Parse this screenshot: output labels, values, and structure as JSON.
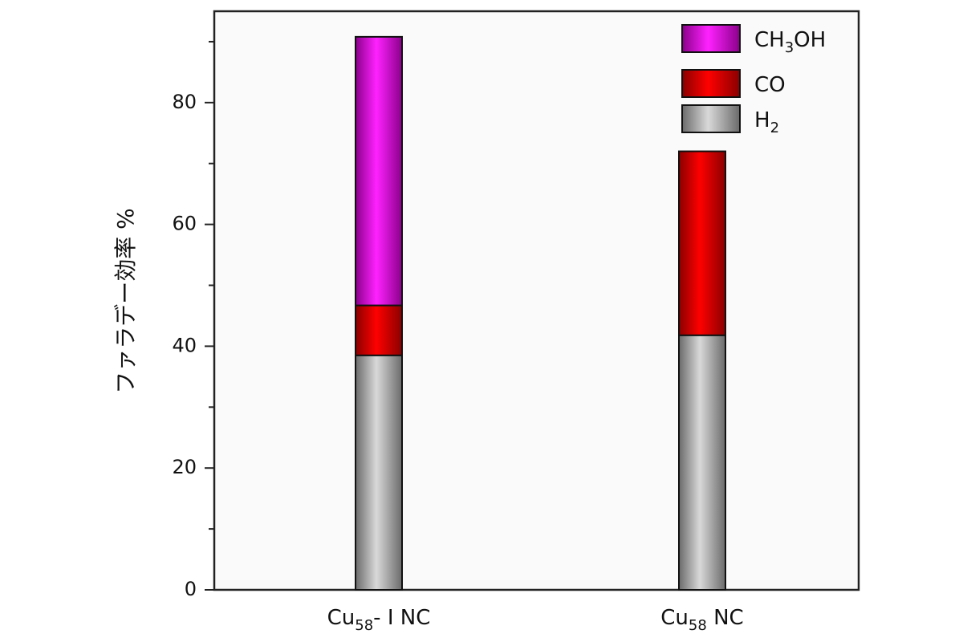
{
  "chart_data": {
    "type": "bar",
    "stacked": true,
    "categories": [
      "Cu58- Ⅰ NC",
      "Cu58 NC"
    ],
    "category_labels": [
      {
        "base": "Cu",
        "sub": "58",
        "rest": "- Ⅰ NC"
      },
      {
        "base": "Cu",
        "sub": "58",
        "rest": " NC"
      }
    ],
    "series": [
      {
        "name": "H2",
        "legend": {
          "base": "H",
          "sub": "2",
          "rest": ""
        },
        "values": [
          38.5,
          41.8
        ],
        "color": "#b3b3b3"
      },
      {
        "name": "CO",
        "legend": {
          "base": "CO",
          "sub": "",
          "rest": ""
        },
        "values": [
          8.2,
          30.2
        ],
        "color": "#ff0000"
      },
      {
        "name": "CH3OH",
        "legend": {
          "base": "CH",
          "sub": "3",
          "rest": "OH"
        },
        "values": [
          44.1,
          0
        ],
        "color": "#ff00ff"
      }
    ],
    "ylabel": "ファラデー効率 %",
    "ylim": [
      0,
      95
    ],
    "yticks": [
      0,
      20,
      40,
      60,
      80
    ],
    "legend_position": "top-right",
    "grid": false
  }
}
